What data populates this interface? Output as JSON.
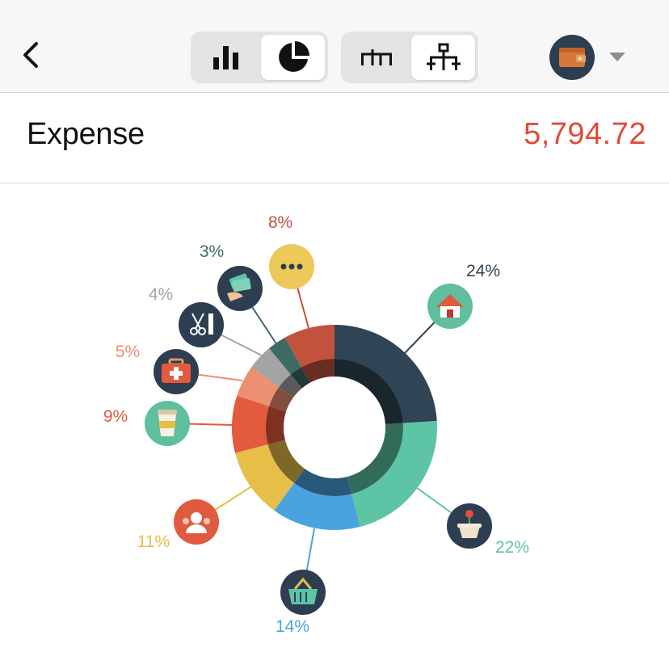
{
  "header": {
    "back_icon": "chevron-left-icon",
    "chart_type_toggle": [
      {
        "icon": "bar-chart-icon",
        "active": false
      },
      {
        "icon": "pie-chart-icon",
        "active": true
      }
    ],
    "hierarchy_toggle": [
      {
        "icon": "flat-tree-icon",
        "active": false
      },
      {
        "icon": "hierarchy-tree-icon",
        "active": true
      }
    ],
    "account_icon": "wallet-icon",
    "dropdown_icon": "caret-down-icon"
  },
  "summary": {
    "title": "Expense",
    "total": "5,794.72",
    "total_color": "#e04b3a"
  },
  "chart_data": {
    "type": "pie",
    "style": "donut",
    "slices": [
      {
        "label": "24%",
        "value": 24,
        "icon": "house-icon",
        "color": "#2f4555",
        "label_color": "#2f4555",
        "icon_bg": "#5fbf9f"
      },
      {
        "label": "22%",
        "value": 22,
        "icon": "flower-pot-icon",
        "color": "#5ec4a6",
        "label_color": "#5ec4a6",
        "icon_bg": "#2c3e50"
      },
      {
        "label": "14%",
        "value": 14,
        "icon": "shopping-basket-icon",
        "color": "#4aa3e0",
        "label_color": "#4aa3e0",
        "icon_bg": "#2c3e50"
      },
      {
        "label": "11%",
        "value": 11,
        "icon": "people-icon",
        "color": "#e6be48",
        "label_color": "#e6be48",
        "icon_bg": "#e05a3f"
      },
      {
        "label": "9%",
        "value": 9,
        "icon": "coffee-cup-icon",
        "color": "#e35a3d",
        "label_color": "#e35a3d",
        "icon_bg": "#5fbf9f"
      },
      {
        "label": "5%",
        "value": 5,
        "icon": "first-aid-kit-icon",
        "color": "#eb9070",
        "label_color": "#eb9070",
        "icon_bg": "#2c3e50"
      },
      {
        "label": "4%",
        "value": 4,
        "icon": "scissors-comb-icon",
        "color": "#a4a4a4",
        "label_color": "#a4a4a4",
        "icon_bg": "#2c3e50"
      },
      {
        "label": "3%",
        "value": 3,
        "icon": "money-hand-icon",
        "color": "#3f6b65",
        "label_color": "#3f6b65",
        "icon_bg": "#2c3e50"
      },
      {
        "label": "8%",
        "value": 8,
        "icon": "more-dots-icon",
        "color": "#c2523c",
        "label_color": "#c2523c",
        "icon_bg": "#edc95a"
      }
    ]
  }
}
